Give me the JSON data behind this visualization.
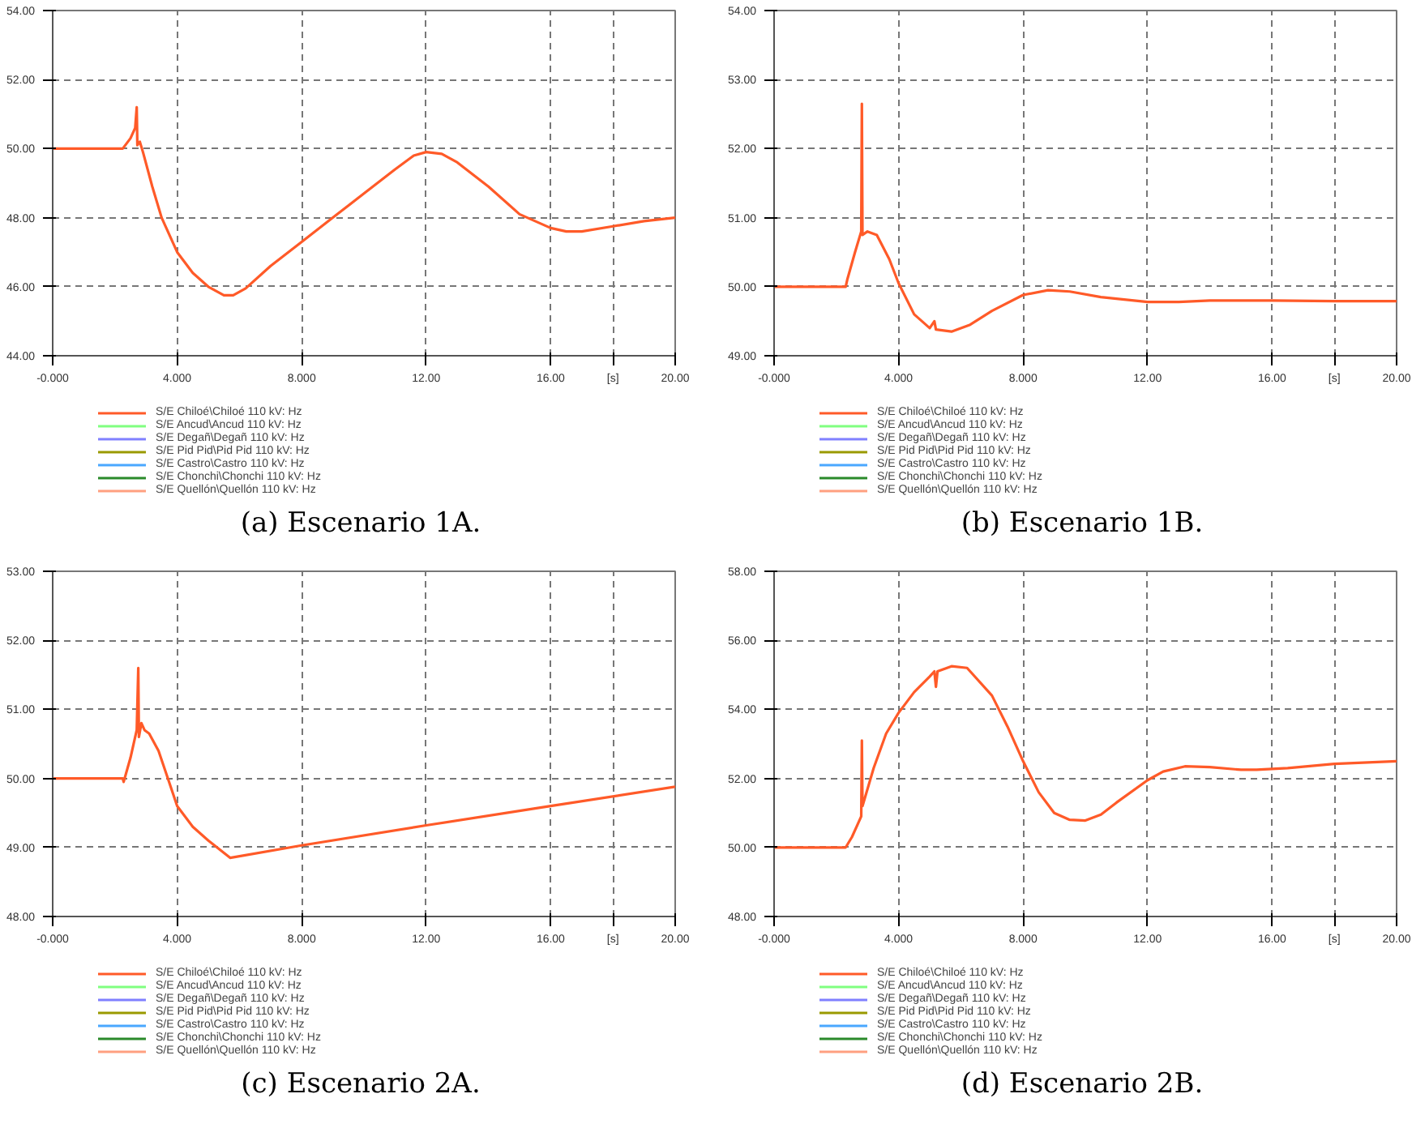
{
  "chart_data": [
    {
      "type": "line",
      "title": "(a) Escenario 1A.",
      "legend": "bottom left",
      "grid": true,
      "x": [
        0,
        2.25,
        2.5,
        2.65,
        2.7,
        2.72,
        2.8,
        2.9,
        3.2,
        3.5,
        4,
        4.5,
        5,
        5.5,
        5.8,
        6.2,
        7,
        8,
        9,
        10,
        11,
        11.6,
        12,
        12.5,
        13,
        14,
        15,
        16,
        16.5,
        17,
        18,
        19,
        20
      ],
      "xlim": [
        0,
        20
      ],
      "xticks": [
        {
          "value": 0,
          "label": "-0.000"
        },
        {
          "value": 4,
          "label": "4.000"
        },
        {
          "value": 8,
          "label": "8.000"
        },
        {
          "value": 12,
          "label": "12.00"
        },
        {
          "value": 16,
          "label": "16.00"
        },
        {
          "value": 18,
          "label": "[s]"
        },
        {
          "value": 20,
          "label": "20.00"
        }
      ],
      "ylim": [
        44,
        54
      ],
      "yticks": [
        {
          "value": 44,
          "label": "44.00"
        },
        {
          "value": 46,
          "label": "46.00"
        },
        {
          "value": 48,
          "label": "48.00"
        },
        {
          "value": 50,
          "label": "50.00"
        },
        {
          "value": 52,
          "label": "52.00"
        },
        {
          "value": 54,
          "label": "54.00"
        }
      ],
      "series": [
        {
          "name": "S/E Chiloé\\Chiloé 110 kV: Hz",
          "color": "#ff5a28",
          "values": [
            50,
            50,
            50.3,
            50.6,
            51.2,
            50.1,
            50.2,
            49.9,
            48.9,
            48,
            47,
            46.4,
            46,
            45.75,
            45.75,
            45.95,
            46.6,
            47.3,
            48,
            48.7,
            49.4,
            49.8,
            49.9,
            49.85,
            49.6,
            48.9,
            48.1,
            47.7,
            47.6,
            47.6,
            47.75,
            47.9,
            48
          ]
        },
        {
          "name": "S/E Ancud\\Ancud 110 kV: Hz",
          "color": "#80ff80",
          "values": [
            null,
            null,
            null,
            null,
            null,
            null,
            null,
            null,
            null,
            null,
            null,
            null,
            null,
            null,
            null,
            null,
            null,
            null,
            null,
            null,
            null,
            null,
            null,
            null,
            null,
            null,
            null,
            null,
            null,
            null,
            null,
            null,
            null
          ]
        },
        {
          "name": "S/E Degañ\\Degañ 110 kV: Hz",
          "color": "#8080ff",
          "values": [
            null,
            null,
            null,
            null,
            null,
            null,
            null,
            null,
            null,
            null,
            null,
            null,
            null,
            null,
            null,
            null,
            null,
            null,
            null,
            null,
            null,
            null,
            null,
            null,
            null,
            null,
            null,
            null,
            null,
            null,
            null,
            null,
            null
          ]
        },
        {
          "name": "S/E Pid Pid\\Pid Pid 110 kV: Hz",
          "color": "#9a9a00",
          "values": [
            null,
            null,
            null,
            null,
            null,
            null,
            null,
            null,
            null,
            null,
            null,
            null,
            null,
            null,
            null,
            null,
            null,
            null,
            null,
            null,
            null,
            null,
            null,
            null,
            null,
            null,
            null,
            null,
            null,
            null,
            null,
            null,
            null
          ]
        },
        {
          "name": "S/E Castro\\Castro 110 kV: Hz",
          "color": "#4aa8ff",
          "values": [
            null,
            null,
            null,
            null,
            null,
            null,
            null,
            null,
            null,
            null,
            null,
            null,
            null,
            null,
            null,
            null,
            null,
            null,
            null,
            null,
            null,
            null,
            null,
            null,
            null,
            null,
            null,
            null,
            null,
            null,
            null,
            null,
            null
          ]
        },
        {
          "name": "S/E Chonchi\\Chonchi 110 kV: Hz",
          "color": "#2a8a2a",
          "values": [
            null,
            null,
            null,
            null,
            null,
            null,
            null,
            null,
            null,
            null,
            null,
            null,
            null,
            null,
            null,
            null,
            null,
            null,
            null,
            null,
            null,
            null,
            null,
            null,
            null,
            null,
            null,
            null,
            null,
            null,
            null,
            null,
            null
          ]
        },
        {
          "name": "S/E Quellón\\Quellón 110 kV: Hz",
          "color": "#ffa080",
          "values": [
            null,
            null,
            null,
            null,
            null,
            null,
            null,
            null,
            null,
            null,
            null,
            null,
            null,
            null,
            null,
            null,
            null,
            null,
            null,
            null,
            null,
            null,
            null,
            null,
            null,
            null,
            null,
            null,
            null,
            null,
            null,
            null,
            null
          ]
        }
      ]
    },
    {
      "type": "line",
      "title": "(b) Escenario 1B.",
      "legend": "bottom left",
      "grid": true,
      "x": [
        0,
        2.3,
        2.35,
        2.6,
        2.8,
        2.82,
        2.84,
        3.0,
        3.3,
        3.7,
        4.0,
        4.5,
        5.0,
        5.15,
        5.2,
        5.7,
        6.3,
        7,
        8,
        8.8,
        9.5,
        10.5,
        12,
        13,
        14,
        16,
        18,
        20
      ],
      "xlim": [
        0,
        20
      ],
      "xticks": [
        {
          "value": 0,
          "label": "-0.000"
        },
        {
          "value": 4,
          "label": "4.000"
        },
        {
          "value": 8,
          "label": "8.000"
        },
        {
          "value": 12,
          "label": "12.00"
        },
        {
          "value": 16,
          "label": "16.00"
        },
        {
          "value": 18,
          "label": "[s]"
        },
        {
          "value": 20,
          "label": "20.00"
        }
      ],
      "ylim": [
        49,
        54
      ],
      "yticks": [
        {
          "value": 49,
          "label": "49.00"
        },
        {
          "value": 50,
          "label": "50.00"
        },
        {
          "value": 51,
          "label": "51.00"
        },
        {
          "value": 52,
          "label": "52.00"
        },
        {
          "value": 53,
          "label": "53.00"
        },
        {
          "value": 54,
          "label": "54.00"
        }
      ],
      "series": [
        {
          "name": "S/E Chiloé\\Chiloé 110 kV: Hz",
          "color": "#ff5a28",
          "values": [
            50,
            50,
            50.1,
            50.5,
            50.8,
            52.65,
            50.75,
            50.8,
            50.75,
            50.4,
            50.05,
            49.6,
            49.4,
            49.5,
            49.38,
            49.35,
            49.45,
            49.65,
            49.88,
            49.95,
            49.93,
            49.85,
            49.78,
            49.78,
            49.8,
            49.8,
            49.79,
            49.79
          ]
        },
        {
          "name": "S/E Ancud\\Ancud 110 kV: Hz",
          "color": "#80ff80",
          "values": [
            null,
            null,
            null,
            null,
            null,
            null,
            null,
            null,
            null,
            null,
            null,
            null,
            null,
            null,
            null,
            null,
            null,
            null,
            null,
            null,
            null,
            null,
            null,
            null,
            null,
            null,
            null,
            null
          ]
        },
        {
          "name": "S/E Degañ\\Degañ 110 kV: Hz",
          "color": "#8080ff",
          "values": [
            null,
            null,
            null,
            null,
            null,
            null,
            null,
            null,
            null,
            null,
            null,
            null,
            null,
            null,
            null,
            null,
            null,
            null,
            null,
            null,
            null,
            null,
            null,
            null,
            null,
            null,
            null,
            null
          ]
        },
        {
          "name": "S/E Pid Pid\\Pid Pid 110 kV: Hz",
          "color": "#9a9a00",
          "values": [
            null,
            null,
            null,
            null,
            null,
            null,
            null,
            null,
            null,
            null,
            null,
            null,
            null,
            null,
            null,
            null,
            null,
            null,
            null,
            null,
            null,
            null,
            null,
            null,
            null,
            null,
            null,
            null
          ]
        },
        {
          "name": "S/E Castro\\Castro 110 kV: Hz",
          "color": "#4aa8ff",
          "values": [
            null,
            null,
            null,
            null,
            null,
            null,
            null,
            null,
            null,
            null,
            null,
            null,
            null,
            null,
            null,
            null,
            null,
            null,
            null,
            null,
            null,
            null,
            null,
            null,
            null,
            null,
            null,
            null
          ]
        },
        {
          "name": "S/E Chonchi\\Chonchi 110 kV: Hz",
          "color": "#2a8a2a",
          "values": [
            null,
            null,
            null,
            null,
            null,
            null,
            null,
            null,
            null,
            null,
            null,
            null,
            null,
            null,
            null,
            null,
            null,
            null,
            null,
            null,
            null,
            null,
            null,
            null,
            null,
            null,
            null,
            null
          ]
        },
        {
          "name": "S/E Quellón\\Quellón 110 kV: Hz",
          "color": "#ffa080",
          "values": [
            null,
            null,
            null,
            null,
            null,
            null,
            null,
            null,
            null,
            null,
            null,
            null,
            null,
            null,
            null,
            null,
            null,
            null,
            null,
            null,
            null,
            null,
            null,
            null,
            null,
            null,
            null,
            null
          ]
        }
      ]
    },
    {
      "type": "line",
      "title": "(c) Escenario 2A.",
      "legend": "bottom left",
      "grid": true,
      "x": [
        0,
        2.25,
        2.28,
        2.5,
        2.7,
        2.75,
        2.77,
        2.85,
        2.95,
        3.1,
        3.4,
        3.7,
        4.0,
        4.5,
        5.0,
        5.7,
        8,
        12,
        16,
        20
      ],
      "xlim": [
        0,
        20
      ],
      "xticks": [
        {
          "value": 0,
          "label": "-0.000"
        },
        {
          "value": 4,
          "label": "4.000"
        },
        {
          "value": 8,
          "label": "8.000"
        },
        {
          "value": 12,
          "label": "12.00"
        },
        {
          "value": 16,
          "label": "16.00"
        },
        {
          "value": 18,
          "label": "[s]"
        },
        {
          "value": 20,
          "label": "20.00"
        }
      ],
      "ylim": [
        48,
        53
      ],
      "yticks": [
        {
          "value": 48,
          "label": "48.00"
        },
        {
          "value": 49,
          "label": "49.00"
        },
        {
          "value": 50,
          "label": "50.00"
        },
        {
          "value": 51,
          "label": "51.00"
        },
        {
          "value": 52,
          "label": "52.00"
        },
        {
          "value": 53,
          "label": "53.00"
        }
      ],
      "series": [
        {
          "name": "S/E Chiloé\\Chiloé 110 kV: Hz",
          "color": "#ff5a28",
          "values": [
            50,
            50,
            49.95,
            50.3,
            50.7,
            51.6,
            50.6,
            50.8,
            50.7,
            50.65,
            50.4,
            50.0,
            49.6,
            49.3,
            49.1,
            48.85,
            49.03,
            49.32,
            49.6,
            49.88
          ]
        },
        {
          "name": "S/E Ancud\\Ancud 110 kV: Hz",
          "color": "#80ff80",
          "values": [
            null,
            null,
            null,
            null,
            null,
            null,
            null,
            null,
            null,
            null,
            null,
            null,
            null,
            null,
            null,
            null,
            null,
            null,
            null,
            null
          ]
        },
        {
          "name": "S/E Degañ\\Degañ 110 kV: Hz",
          "color": "#8080ff",
          "values": [
            null,
            null,
            null,
            null,
            null,
            null,
            null,
            null,
            null,
            null,
            null,
            null,
            null,
            null,
            null,
            null,
            null,
            null,
            null,
            null
          ]
        },
        {
          "name": "S/E Pid Pid\\Pid Pid 110 kV: Hz",
          "color": "#9a9a00",
          "values": [
            null,
            null,
            null,
            null,
            null,
            null,
            null,
            null,
            null,
            null,
            null,
            null,
            null,
            null,
            null,
            null,
            null,
            null,
            null,
            null
          ]
        },
        {
          "name": "S/E Castro\\Castro 110 kV: Hz",
          "color": "#4aa8ff",
          "values": [
            null,
            null,
            null,
            null,
            null,
            null,
            null,
            null,
            null,
            null,
            null,
            null,
            null,
            null,
            null,
            null,
            null,
            null,
            null,
            null
          ]
        },
        {
          "name": "S/E Chonchi\\Chonchi 110 kV: Hz",
          "color": "#2a8a2a",
          "values": [
            null,
            null,
            null,
            null,
            null,
            null,
            null,
            null,
            null,
            null,
            null,
            null,
            null,
            null,
            null,
            null,
            null,
            null,
            null,
            null
          ]
        },
        {
          "name": "S/E Quellón\\Quellón 110 kV: Hz",
          "color": "#ffa080",
          "values": [
            null,
            null,
            null,
            null,
            null,
            null,
            null,
            null,
            null,
            null,
            null,
            null,
            null,
            null,
            null,
            null,
            null,
            null,
            null,
            null
          ]
        }
      ]
    },
    {
      "type": "line",
      "title": "(d) Escenario 2B.",
      "legend": "bottom left",
      "grid": true,
      "x": [
        0,
        2.3,
        2.5,
        2.8,
        2.82,
        2.84,
        3.2,
        3.6,
        4,
        4.5,
        5,
        5.15,
        5.2,
        5.25,
        5.7,
        6.2,
        7,
        7.5,
        8,
        8.5,
        9,
        9.5,
        10,
        10.5,
        11,
        12,
        12.5,
        13.2,
        14,
        15,
        15.5,
        16.5,
        18,
        20
      ],
      "xlim": [
        0,
        20
      ],
      "xticks": [
        {
          "value": 0,
          "label": "-0.000"
        },
        {
          "value": 4,
          "label": "4.000"
        },
        {
          "value": 8,
          "label": "8.000"
        },
        {
          "value": 12,
          "label": "12.00"
        },
        {
          "value": 16,
          "label": "16.00"
        },
        {
          "value": 18,
          "label": "[s]"
        },
        {
          "value": 20,
          "label": "20.00"
        }
      ],
      "ylim": [
        48,
        58
      ],
      "yticks": [
        {
          "value": 48,
          "label": "48.00"
        },
        {
          "value": 50,
          "label": "50.00"
        },
        {
          "value": 52,
          "label": "52.00"
        },
        {
          "value": 54,
          "label": "54.00"
        },
        {
          "value": 56,
          "label": "56.00"
        },
        {
          "value": 58,
          "label": "58.00"
        }
      ],
      "series": [
        {
          "name": "S/E Chiloé\\Chiloé 110 kV: Hz",
          "color": "#ff5a28",
          "values": [
            50,
            50,
            50.3,
            50.9,
            53.1,
            51.2,
            52.3,
            53.3,
            53.9,
            54.5,
            54.95,
            55.1,
            54.65,
            55.1,
            55.25,
            55.2,
            54.4,
            53.5,
            52.5,
            51.6,
            51.0,
            50.8,
            50.78,
            50.95,
            51.3,
            51.95,
            52.2,
            52.35,
            52.33,
            52.25,
            52.25,
            52.3,
            52.42,
            52.5
          ]
        },
        {
          "name": "S/E Ancud\\Ancud 110 kV: Hz",
          "color": "#80ff80",
          "values": [
            null,
            null,
            null,
            null,
            null,
            null,
            null,
            null,
            null,
            null,
            null,
            null,
            null,
            null,
            null,
            null,
            null,
            null,
            null,
            null,
            null,
            null,
            null,
            null,
            null,
            null,
            null,
            null,
            null,
            null,
            null,
            null,
            null,
            null
          ]
        },
        {
          "name": "S/E Degañ\\Degañ 110 kV: Hz",
          "color": "#8080ff",
          "values": [
            null,
            null,
            null,
            null,
            null,
            null,
            null,
            null,
            null,
            null,
            null,
            null,
            null,
            null,
            null,
            null,
            null,
            null,
            null,
            null,
            null,
            null,
            null,
            null,
            null,
            null,
            null,
            null,
            null,
            null,
            null,
            null,
            null,
            null
          ]
        },
        {
          "name": "S/E Pid Pid\\Pid Pid 110 kV: Hz",
          "color": "#9a9a00",
          "values": [
            null,
            null,
            null,
            null,
            null,
            null,
            null,
            null,
            null,
            null,
            null,
            null,
            null,
            null,
            null,
            null,
            null,
            null,
            null,
            null,
            null,
            null,
            null,
            null,
            null,
            null,
            null,
            null,
            null,
            null,
            null,
            null,
            null,
            null
          ]
        },
        {
          "name": "S/E Castro\\Castro 110 kV: Hz",
          "color": "#4aa8ff",
          "values": [
            null,
            null,
            null,
            null,
            null,
            null,
            null,
            null,
            null,
            null,
            null,
            null,
            null,
            null,
            null,
            null,
            null,
            null,
            null,
            null,
            null,
            null,
            null,
            null,
            null,
            null,
            null,
            null,
            null,
            null,
            null,
            null,
            null,
            null
          ]
        },
        {
          "name": "S/E Chonchi\\Chonchi 110 kV: Hz",
          "color": "#2a8a2a",
          "values": [
            null,
            null,
            null,
            null,
            null,
            null,
            null,
            null,
            null,
            null,
            null,
            null,
            null,
            null,
            null,
            null,
            null,
            null,
            null,
            null,
            null,
            null,
            null,
            null,
            null,
            null,
            null,
            null,
            null,
            null,
            null,
            null,
            null,
            null
          ]
        },
        {
          "name": "S/E Quellón\\Quellón 110 kV: Hz",
          "color": "#ffa080",
          "values": [
            null,
            null,
            null,
            null,
            null,
            null,
            null,
            null,
            null,
            null,
            null,
            null,
            null,
            null,
            null,
            null,
            null,
            null,
            null,
            null,
            null,
            null,
            null,
            null,
            null,
            null,
            null,
            null,
            null,
            null,
            null,
            null,
            null,
            null
          ]
        }
      ]
    }
  ]
}
